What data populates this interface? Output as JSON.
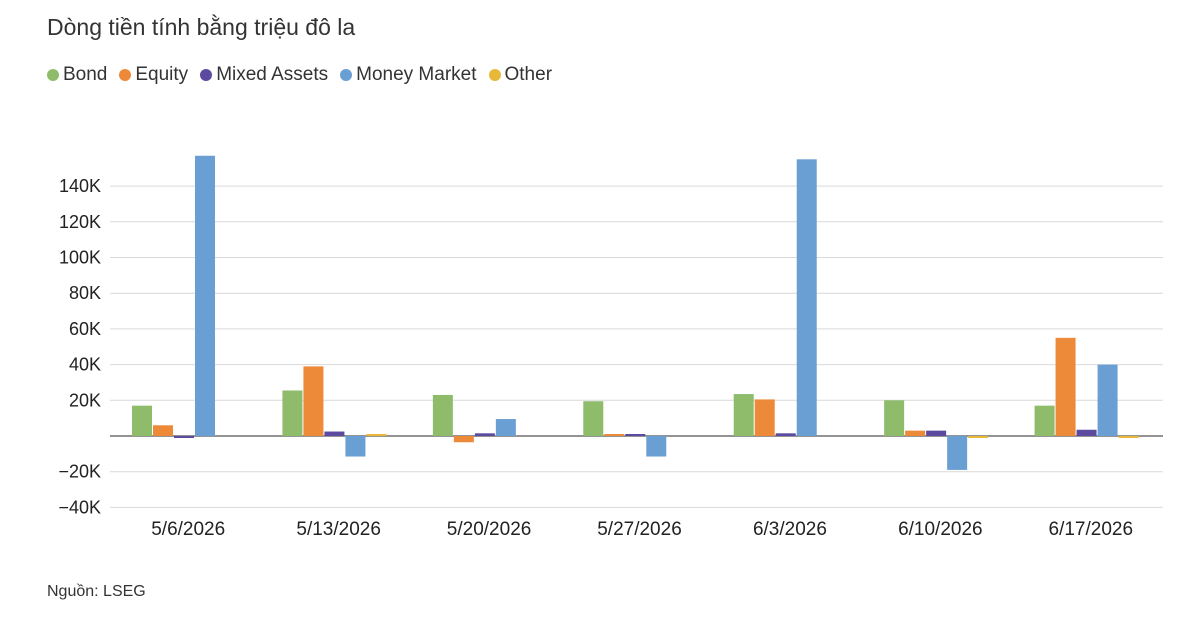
{
  "chart_data": {
    "type": "bar",
    "title": "Dòng tiền tính bằng triệu đô la",
    "source": "Nguồn: LSEG",
    "categories": [
      "5/6/2026",
      "5/13/2026",
      "5/20/2026",
      "5/27/2026",
      "6/3/2026",
      "6/10/2026",
      "6/17/2026"
    ],
    "series": [
      {
        "name": "Bond",
        "color": "#8fbc6b",
        "values": [
          17000,
          25500,
          23000,
          19500,
          23500,
          20000,
          17000
        ]
      },
      {
        "name": "Equity",
        "color": "#ec8a3a",
        "values": [
          6000,
          39000,
          -3500,
          1000,
          20500,
          3000,
          55000
        ]
      },
      {
        "name": "Mixed Assets",
        "color": "#5b4aa0",
        "values": [
          -1000,
          2500,
          1500,
          500,
          1500,
          3000,
          3500
        ]
      },
      {
        "name": "Money Market",
        "color": "#6a9fd4",
        "values": [
          157000,
          -11500,
          9500,
          -11500,
          155000,
          -19000,
          40000
        ]
      },
      {
        "name": "Other",
        "color": "#e8b838",
        "values": [
          0,
          500,
          0,
          0,
          0,
          -1000,
          -1000
        ]
      }
    ],
    "yticks": [
      "140K",
      "120K",
      "100K",
      "80K",
      "60K",
      "40K",
      "20K",
      "−20K",
      "−40K"
    ],
    "ytick_values": [
      140000,
      120000,
      100000,
      80000,
      60000,
      40000,
      20000,
      -20000,
      -40000
    ],
    "ylim": [
      -40000,
      160000
    ],
    "grid": true,
    "legend_position": "top-left"
  }
}
